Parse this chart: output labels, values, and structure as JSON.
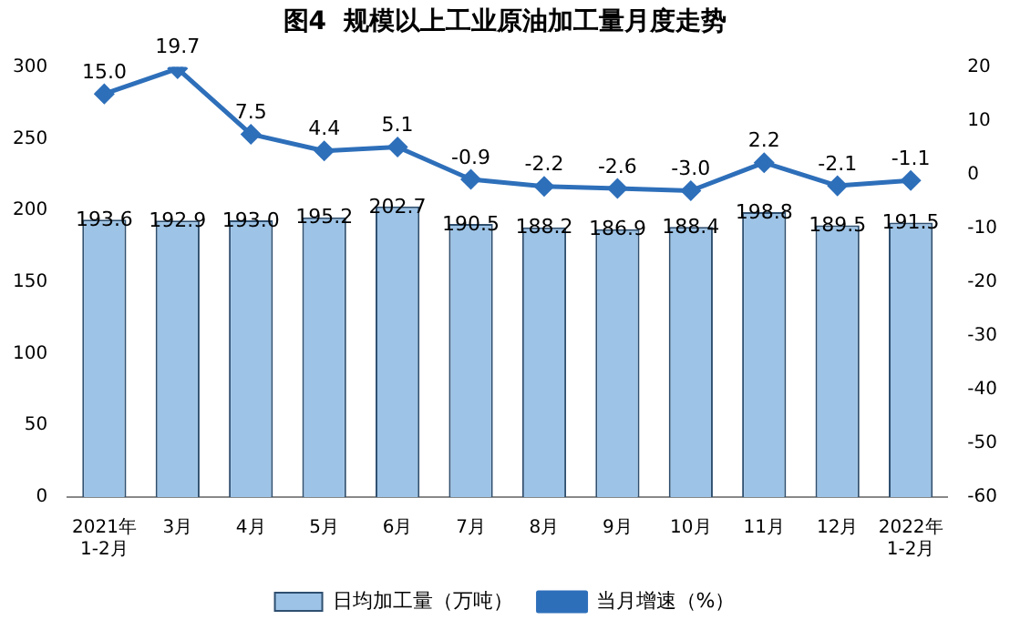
{
  "chart_data": {
    "type": "bar",
    "title": "图4  规模以上工业原油加工量月度走势",
    "categories": [
      "2021年\n1-2月",
      "3月",
      "4月",
      "5月",
      "6月",
      "7月",
      "8月",
      "9月",
      "10月",
      "11月",
      "12月",
      "2022年\n1-2月"
    ],
    "series": [
      {
        "name": "日均加工量（万吨）",
        "color": "#9dc3e6",
        "values": [
          193.6,
          192.9,
          193.0,
          195.2,
          202.7,
          190.5,
          188.2,
          186.9,
          188.4,
          198.8,
          189.5,
          191.5
        ],
        "value_labels": [
          "193.6",
          "192.9",
          "193.0",
          "195.2",
          "202.7",
          "190.5",
          "188.2",
          "186.9",
          "188.4",
          "198.8",
          "189.5",
          "191.5"
        ]
      },
      {
        "name": "当月增速（%）",
        "type": "line",
        "axis": "y2",
        "color": "#2e6fba",
        "marker": "diamond",
        "values": [
          15.0,
          19.7,
          7.5,
          4.4,
          5.1,
          -0.9,
          -2.2,
          -2.6,
          -3.0,
          2.2,
          -2.1,
          -1.1
        ],
        "value_labels": [
          "15.0",
          "19.7",
          "7.5",
          "4.4",
          "5.1",
          "-0.9",
          "-2.2",
          "-2.6",
          "-3.0",
          "2.2",
          "-2.1",
          "-1.1"
        ]
      }
    ],
    "ylim": [
      0,
      300
    ],
    "yticks": [
      0,
      50,
      100,
      150,
      200,
      250,
      300
    ],
    "y2lim": [
      -60,
      20
    ],
    "y2ticks": [
      -60,
      -50,
      -40,
      -30,
      -20,
      -10,
      0,
      10,
      20
    ],
    "grid": false,
    "legend": "bottom"
  }
}
